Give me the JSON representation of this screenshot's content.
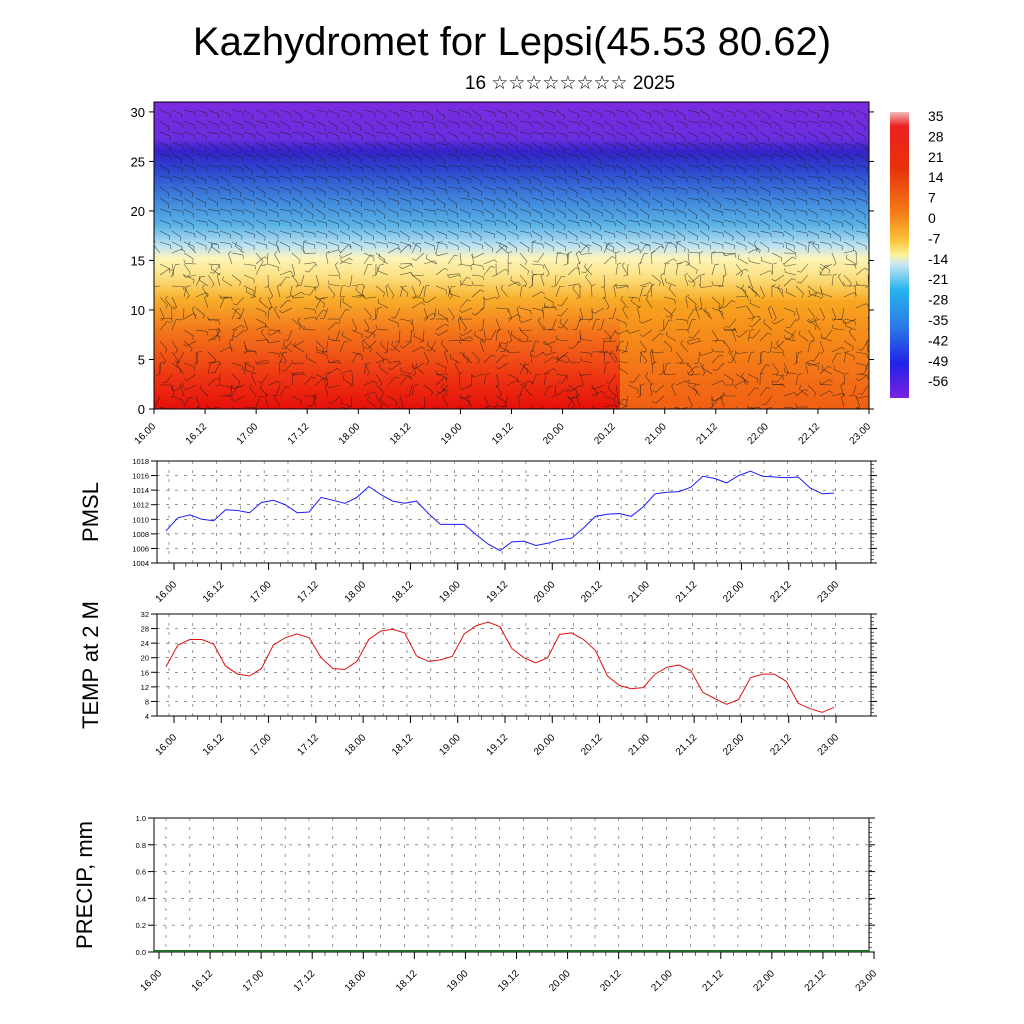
{
  "header": {
    "title": "Kazhydromet for Lepsi(45.53 80.62)",
    "subtitle": "16 ☆☆☆☆☆☆☆☆ 2025"
  },
  "chart_data": [
    {
      "type": "heatmap",
      "name": "temperature-cross-section",
      "title": "",
      "x_tick_labels": [
        "16.00",
        "16.12",
        "17.00",
        "17.12",
        "18.00",
        "18.12",
        "19.00",
        "19.12",
        "20.00",
        "20.12",
        "21.00",
        "21.12",
        "22.00",
        "22.12",
        "23.00"
      ],
      "y_ticks": [
        0,
        5,
        10,
        15,
        20,
        25,
        30
      ],
      "ylim": [
        0,
        31
      ],
      "colorbar_labels": [
        "35",
        "28",
        "21",
        "14",
        "7",
        "0",
        "-7",
        "-14",
        "-21",
        "-28",
        "-35",
        "-42",
        "-49",
        "-56"
      ],
      "colors": {
        "upper": "#7a2bdc",
        "blue": "#2b6bde",
        "light_blue": "#a8d9ef",
        "yellow": "#fdf09a",
        "orange": "#f7a21c",
        "red": "#e81e0c"
      },
      "overlay": "wind barbs"
    },
    {
      "type": "line",
      "name": "pmsl",
      "ylabel": "PMSL",
      "x_tick_labels": [
        "16.00",
        "16.12",
        "17.00",
        "17.12",
        "18.00",
        "18.12",
        "19.00",
        "19.12",
        "20.00",
        "20.12",
        "21.00",
        "21.12",
        "22.00",
        "22.12",
        "23.00"
      ],
      "ylim": [
        1004,
        1018
      ],
      "y_ticks": [
        1004,
        1006,
        1008,
        1010,
        1012,
        1014,
        1016,
        1018
      ],
      "color": "#1a1aff",
      "values": [
        1008.4,
        1010.2,
        1010.6,
        1010.0,
        1009.8,
        1011.3,
        1011.2,
        1010.9,
        1012.3,
        1012.6,
        1012.0,
        1010.9,
        1011.0,
        1013.0,
        1012.6,
        1012.2,
        1013.0,
        1014.5,
        1013.4,
        1012.5,
        1012.2,
        1012.5,
        1010.8,
        1009.3,
        1009.3,
        1009.3,
        1007.9,
        1006.6,
        1005.7,
        1006.9,
        1007.0,
        1006.4,
        1006.7,
        1007.2,
        1007.4,
        1008.8,
        1010.4,
        1010.7,
        1010.8,
        1010.4,
        1011.7,
        1013.5,
        1013.7,
        1013.8,
        1014.4,
        1015.9,
        1015.6,
        1015.0,
        1016.0,
        1016.6,
        1015.9,
        1015.8,
        1015.7,
        1015.8,
        1014.3,
        1013.5,
        1013.6
      ]
    },
    {
      "type": "line",
      "name": "temp-2m",
      "ylabel": "TEMP at 2 M",
      "x_tick_labels": [
        "16.00",
        "16.12",
        "17.00",
        "17.12",
        "18.00",
        "18.12",
        "19.00",
        "19.12",
        "20.00",
        "20.12",
        "21.00",
        "21.12",
        "22.00",
        "22.12",
        "23.00"
      ],
      "ylim": [
        4,
        32
      ],
      "y_ticks": [
        4,
        8,
        12,
        16,
        20,
        24,
        28,
        32
      ],
      "color": "#e01010",
      "values": [
        17.5,
        23.5,
        25.0,
        25.0,
        23.7,
        17.7,
        15.5,
        15.0,
        17.0,
        23.5,
        25.5,
        26.5,
        25.5,
        20.0,
        17.0,
        16.8,
        19.0,
        25.0,
        27.3,
        27.8,
        26.8,
        20.5,
        19.0,
        19.4,
        20.4,
        26.5,
        28.8,
        29.8,
        28.5,
        22.5,
        20.0,
        18.6,
        20.0,
        26.4,
        26.8,
        25.0,
        22.0,
        15.0,
        12.4,
        11.5,
        11.8,
        15.5,
        17.4,
        18.0,
        16.4,
        10.5,
        8.8,
        7.2,
        8.5,
        14.5,
        15.5,
        15.5,
        13.5,
        7.5,
        6.0,
        5.0,
        6.4
      ]
    },
    {
      "type": "bar",
      "name": "precip",
      "ylabel": "PRECIP, mm",
      "x_tick_labels": [
        "16.00",
        "16.12",
        "17.00",
        "17.12",
        "18.00",
        "18.12",
        "19.00",
        "19.12",
        "20.00",
        "20.12",
        "21.00",
        "21.12",
        "22.00",
        "22.12",
        "23.00"
      ],
      "ylim": [
        0,
        1.0
      ],
      "y_ticks": [
        "0.0",
        "0.2",
        "0.4",
        "0.6",
        "0.8",
        "1.0"
      ],
      "color": "#1f6b2a",
      "values": []
    }
  ]
}
